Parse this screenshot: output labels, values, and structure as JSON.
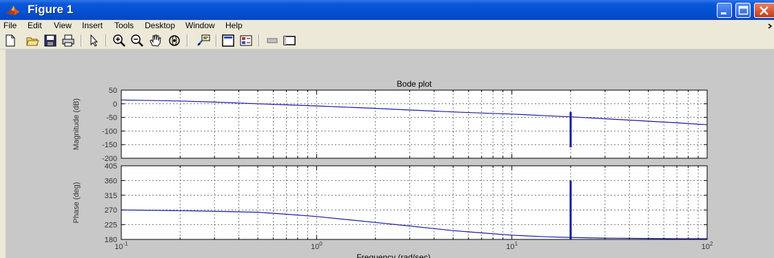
{
  "window": {
    "title": "Figure 1"
  },
  "menu": {
    "items": [
      "File",
      "Edit",
      "View",
      "Insert",
      "Tools",
      "Desktop",
      "Window",
      "Help"
    ]
  },
  "toolbar": {
    "icons": [
      "new-figure-icon",
      "open-file-icon",
      "save-icon",
      "print-icon",
      "pointer-icon",
      "zoom-in-icon",
      "zoom-out-icon",
      "pan-hand-icon",
      "rotate-3d-icon",
      "data-cursor-icon",
      "colorbar-icon",
      "legend-icon",
      "hide-plot-tools-icon",
      "show-plot-tools-icon"
    ]
  },
  "colors": {
    "line": "#1a1aa0",
    "figure_bg": "#c8c8c8",
    "axes_bg": "#ffffff"
  },
  "chart_data": [
    {
      "type": "line",
      "title": "Bode plot",
      "xlabel": "",
      "ylabel": "Magnitude (dB)",
      "xscale": "log",
      "xlim": [
        0.1,
        100
      ],
      "ylim": [
        -200,
        50
      ],
      "yticks": [
        "50",
        "0",
        "-50",
        "-100",
        "-150",
        "-200"
      ],
      "grid": true,
      "series": [
        {
          "x": [
            0.1,
            0.2,
            0.3,
            0.5,
            0.7,
            1,
            2,
            3,
            5,
            7,
            10,
            15,
            20,
            30,
            50,
            70,
            100
          ],
          "y": [
            14,
            10,
            6,
            0,
            -4,
            -8,
            -17,
            -23,
            -30,
            -34,
            -38,
            -44,
            -48,
            -55,
            -64,
            -70,
            -77
          ]
        }
      ],
      "spike": {
        "x": 20,
        "y_top": -30,
        "y_bottom": -160
      }
    },
    {
      "type": "line",
      "title": "",
      "xlabel": "Frequency  (rad/sec)",
      "ylabel": "Phase (deg)",
      "xscale": "log",
      "xlim": [
        0.1,
        100
      ],
      "ylim": [
        180,
        405
      ],
      "yticks": [
        "405",
        "360",
        "315",
        "270",
        "225",
        "180"
      ],
      "xticks": [
        "10^-1",
        "10^0",
        "10^1",
        "10^2"
      ],
      "grid": true,
      "series": [
        {
          "x": [
            0.1,
            0.2,
            0.3,
            0.5,
            0.7,
            1,
            2,
            3,
            5,
            7,
            10,
            15,
            20,
            30,
            50,
            70,
            100
          ],
          "y": [
            270,
            268,
            266,
            263,
            257,
            250,
            232,
            221,
            207,
            200,
            193,
            188,
            186,
            184,
            183,
            182,
            182
          ]
        }
      ],
      "spike": {
        "x": 20,
        "y_top": 360,
        "y_bottom": 180
      }
    }
  ]
}
